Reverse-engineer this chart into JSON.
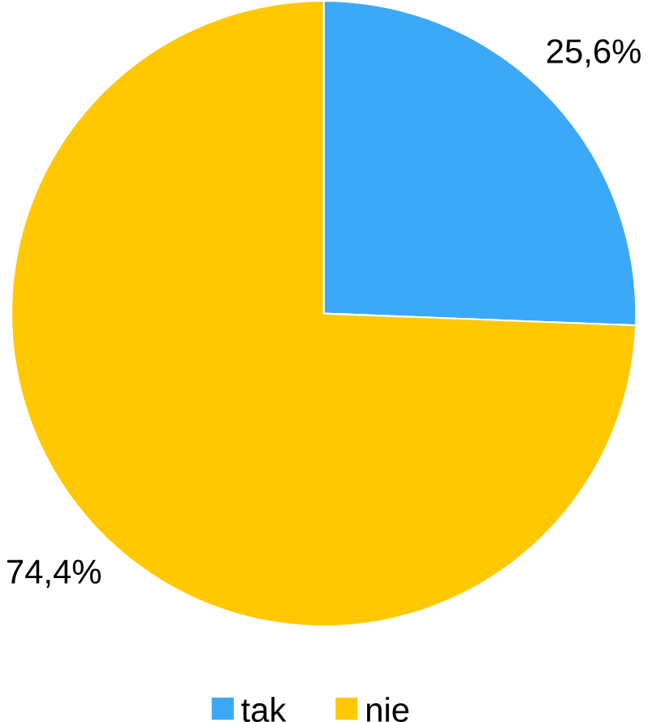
{
  "chart_data": {
    "type": "pie",
    "categories": [
      "tak",
      "nie"
    ],
    "values": [
      25.6,
      74.4
    ],
    "colors": [
      "#3ba9f7",
      "#ffc800"
    ],
    "value_labels": [
      "25,6%",
      "74,4%"
    ],
    "legend": "bottom"
  }
}
